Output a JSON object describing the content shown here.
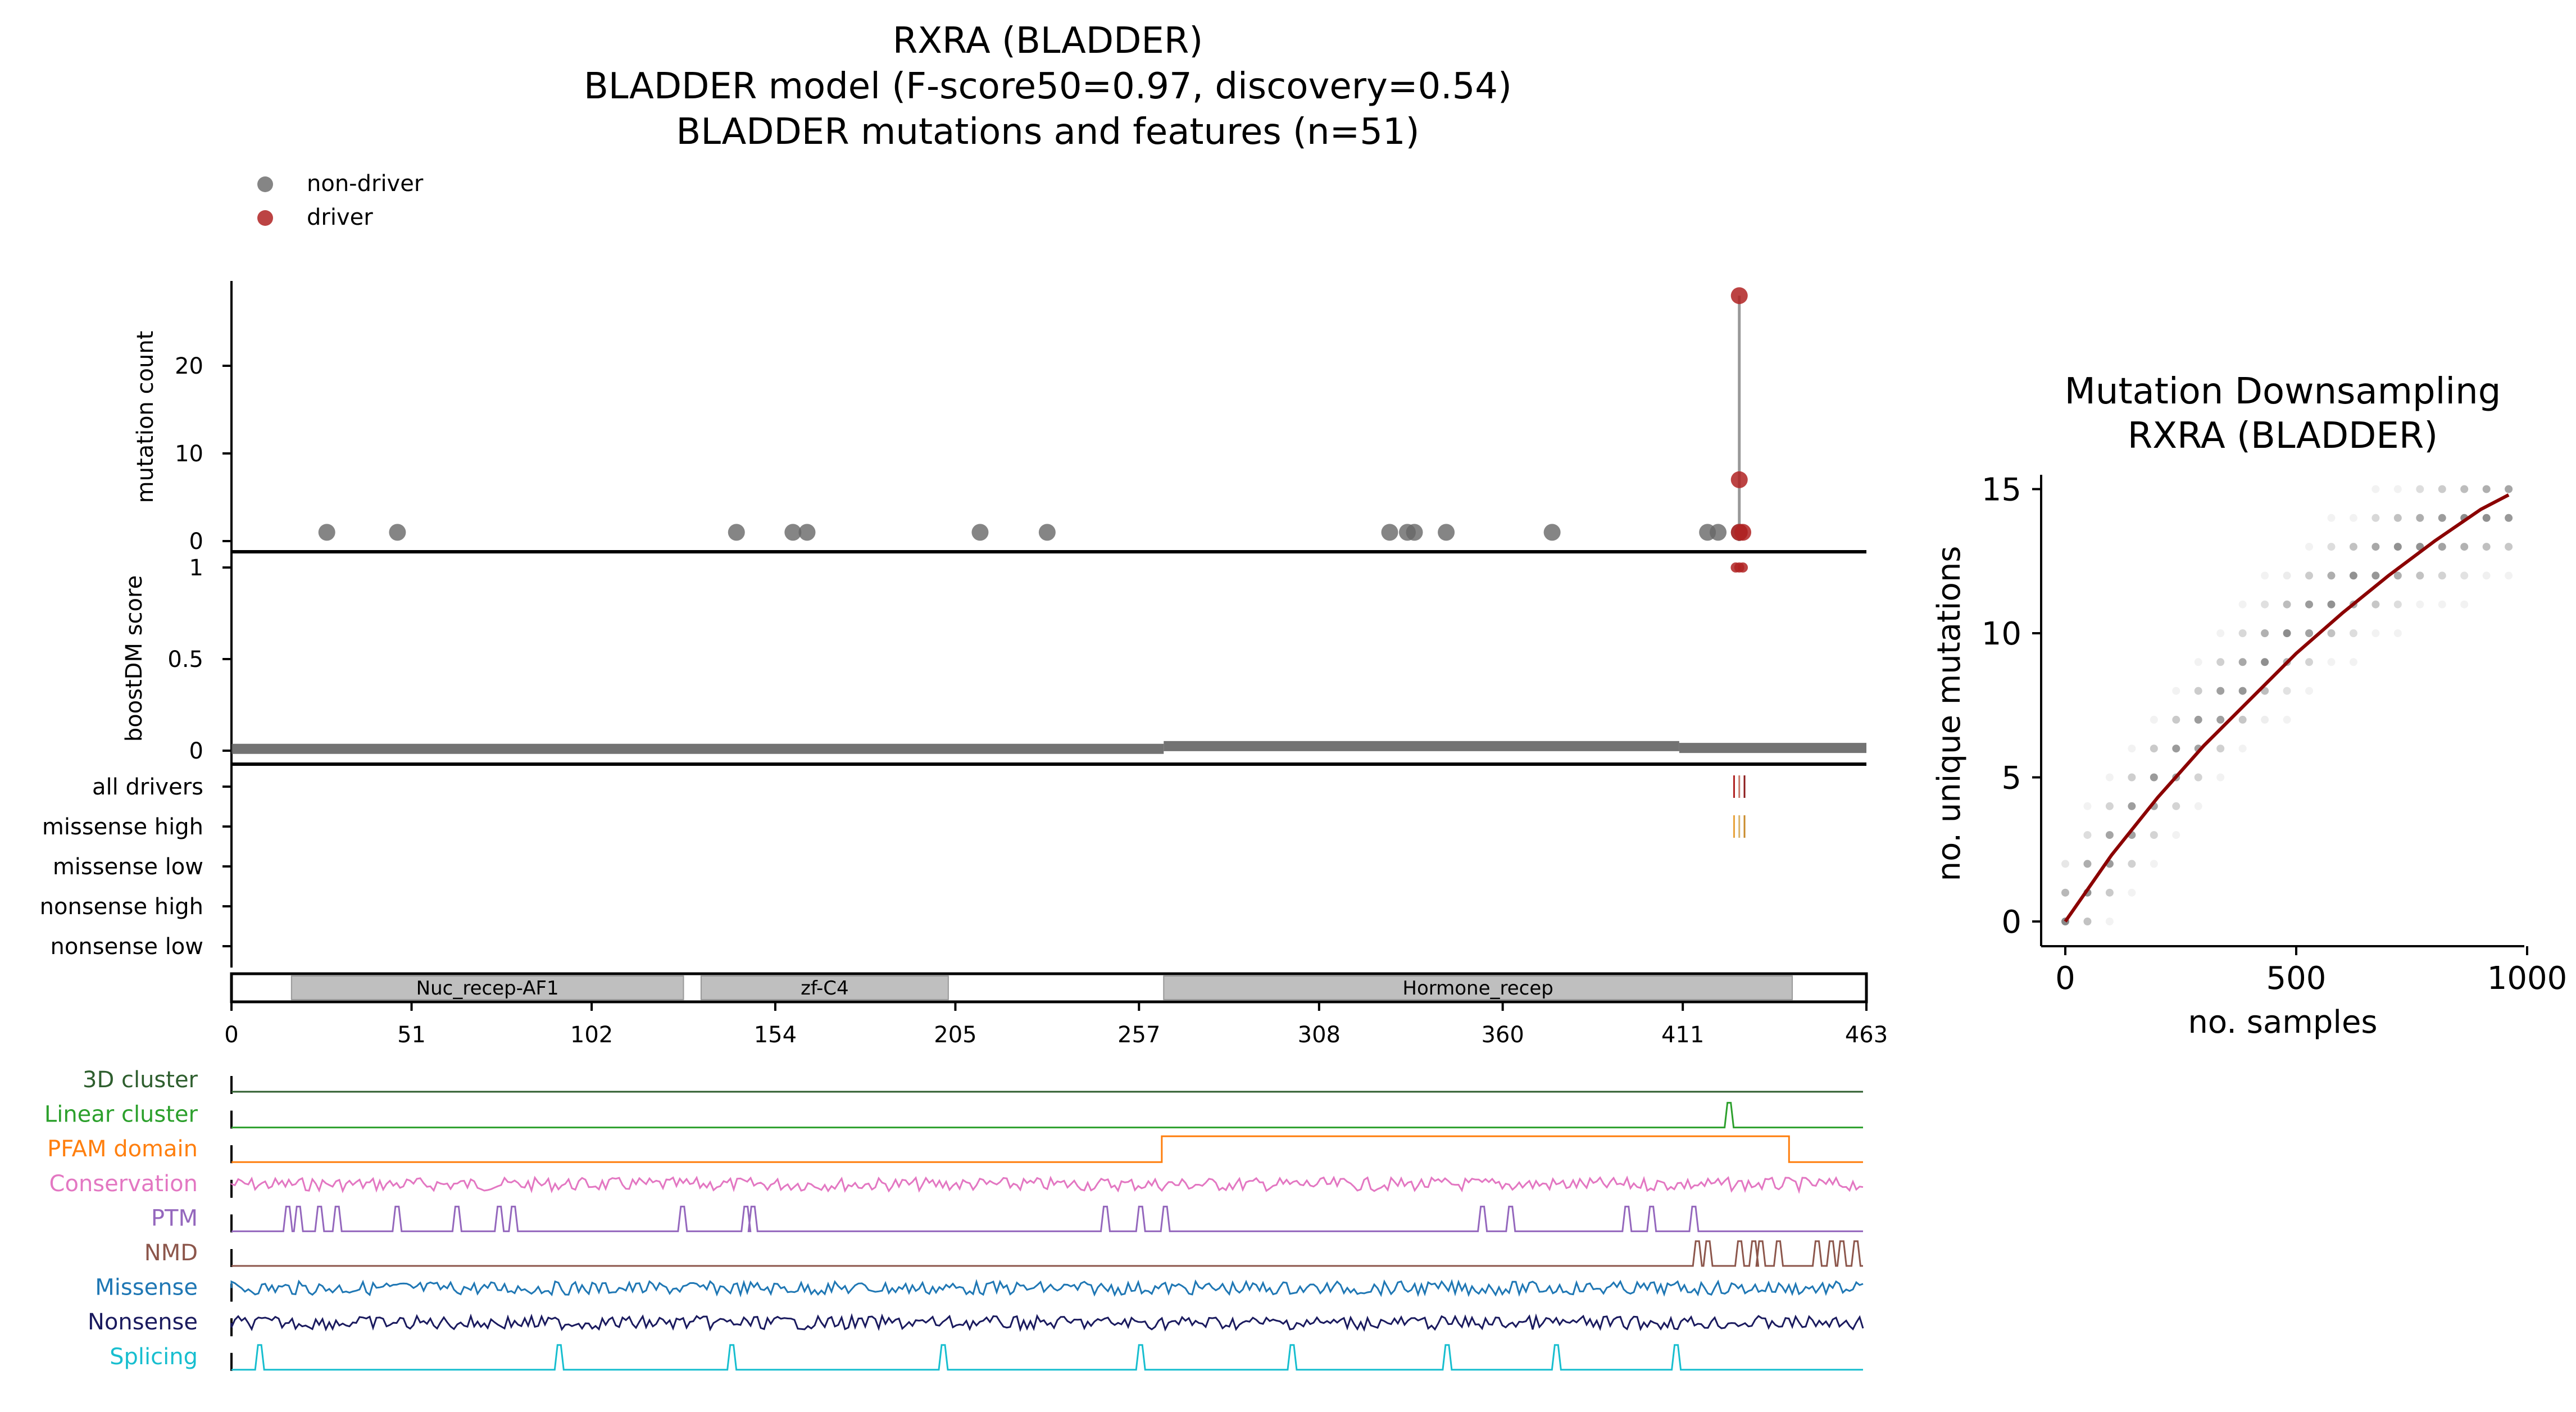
{
  "figure": {
    "title_lines": [
      "RXRA (BLADDER)",
      "BLADDER model (F-score50=0.97, discovery=0.54)",
      "BLADDER mutations and features (n=51)"
    ],
    "legend": [
      {
        "label": "non-driver",
        "color": "#666666"
      },
      {
        "label": "driver",
        "color": "#b02222"
      }
    ]
  },
  "chart_data": [
    {
      "type": "scatter",
      "panel": "mutation lollipop",
      "ylabel": "mutation count",
      "yticks": [
        "0",
        "10",
        "20"
      ],
      "ylim": [
        0,
        30
      ],
      "xlim": [
        0,
        463
      ],
      "nondriver_positions": [
        27,
        47,
        143,
        159,
        163,
        212,
        231,
        328,
        333,
        335,
        344,
        374,
        418,
        421,
        427
      ],
      "nondriver_counts": [
        1,
        1,
        1,
        1,
        1,
        1,
        1,
        1,
        1,
        1,
        1,
        1,
        1,
        1,
        1
      ],
      "driver_positions": [
        427,
        427,
        427,
        428
      ],
      "driver_counts": [
        28,
        7,
        1,
        1
      ]
    },
    {
      "type": "line",
      "panel": "boostDM score",
      "ylabel": "boostDM score",
      "yticks": [
        "0",
        "0.5",
        "1"
      ],
      "ylim": [
        0,
        1
      ],
      "xlim": [
        0,
        463
      ],
      "baseline_segments": [
        {
          "from": 0,
          "to": 264,
          "score": 0.01
        },
        {
          "from": 264,
          "to": 410,
          "score": 0.025
        },
        {
          "from": 410,
          "to": 463,
          "score": 0.015
        }
      ],
      "high_score_positions": [
        426,
        427,
        428
      ],
      "high_score": 1.0
    },
    {
      "type": "scatter",
      "panel": "driver tracks",
      "rows": [
        "all drivers",
        "missense high",
        "missense low",
        "nonsense high",
        "nonsense low"
      ],
      "row_marks": [
        {
          "row": "all drivers",
          "positions": [
            426,
            427,
            428
          ],
          "colors": [
            "#b02222",
            "#c97a6a",
            "#8b1a1a"
          ]
        },
        {
          "row": "missense high",
          "positions": [
            426,
            427,
            428
          ],
          "colors": [
            "#e8a23a",
            "#d9b36a",
            "#c98a2a"
          ]
        }
      ]
    },
    {
      "type": "bar",
      "panel": "protein domains",
      "xlim": [
        0,
        463
      ],
      "xticks": [
        "0",
        "51",
        "102",
        "154",
        "205",
        "257",
        "308",
        "360",
        "411",
        "463"
      ],
      "domains": [
        {
          "name": "Nuc_recep-AF1",
          "start": 17,
          "end": 128
        },
        {
          "name": "zf-C4",
          "start": 133,
          "end": 203
        },
        {
          "name": "Hormone_recep",
          "start": 264,
          "end": 442
        }
      ]
    },
    {
      "type": "line",
      "panel": "feature tracks",
      "xlim": [
        0,
        463
      ],
      "tracks": [
        {
          "label": "3D cluster",
          "color": "#2e5e2e",
          "kind": "flat",
          "positions": []
        },
        {
          "label": "Linear cluster",
          "color": "#2ca02c",
          "kind": "peaks",
          "positions": [
            425
          ]
        },
        {
          "label": "PFAM domain",
          "color": "#ff7f0e",
          "kind": "step",
          "positions": [
            264,
            442
          ]
        },
        {
          "label": "Conservation",
          "color": "#e377c2",
          "kind": "noisy",
          "positions": []
        },
        {
          "label": "PTM",
          "color": "#9467bd",
          "kind": "peaks",
          "positions": [
            16,
            19,
            25,
            30,
            47,
            64,
            76,
            80,
            128,
            146,
            148,
            248,
            258,
            265,
            355,
            363,
            396,
            403,
            415
          ]
        },
        {
          "label": "NMD",
          "color": "#8c564b",
          "kind": "peaks",
          "positions": [
            416,
            419,
            428,
            432,
            434,
            439,
            450,
            454,
            457,
            461
          ]
        },
        {
          "label": "Missense",
          "color": "#1f77b4",
          "kind": "noisy",
          "positions": []
        },
        {
          "label": "Nonsense",
          "color": "#1a1a5e",
          "kind": "noisy",
          "positions": []
        },
        {
          "label": "Splicing",
          "color": "#17becf",
          "kind": "peaks",
          "positions": [
            8,
            93,
            142,
            202,
            258,
            301,
            345,
            376,
            410
          ]
        }
      ]
    },
    {
      "type": "scatter",
      "panel": "downsampling",
      "title": "Mutation Downsampling\nRXRA (BLADDER)",
      "xlabel": "no. samples",
      "ylabel": "no. unique mutations",
      "xlim": [
        -30,
        1010
      ],
      "ylim": [
        -1,
        16
      ],
      "xticks": [
        "0",
        "500",
        "1000"
      ],
      "yticks": [
        "0",
        "5",
        "10",
        "15"
      ],
      "x_step": 48,
      "max_samples": 960,
      "curve": {
        "x": [
          0,
          100,
          200,
          300,
          400,
          500,
          600,
          700,
          800,
          900,
          960
        ],
        "y": [
          0,
          2.3,
          4.3,
          6.1,
          7.7,
          9.3,
          10.7,
          12.0,
          13.2,
          14.3,
          14.8
        ],
        "color": "#8b0000"
      }
    }
  ]
}
